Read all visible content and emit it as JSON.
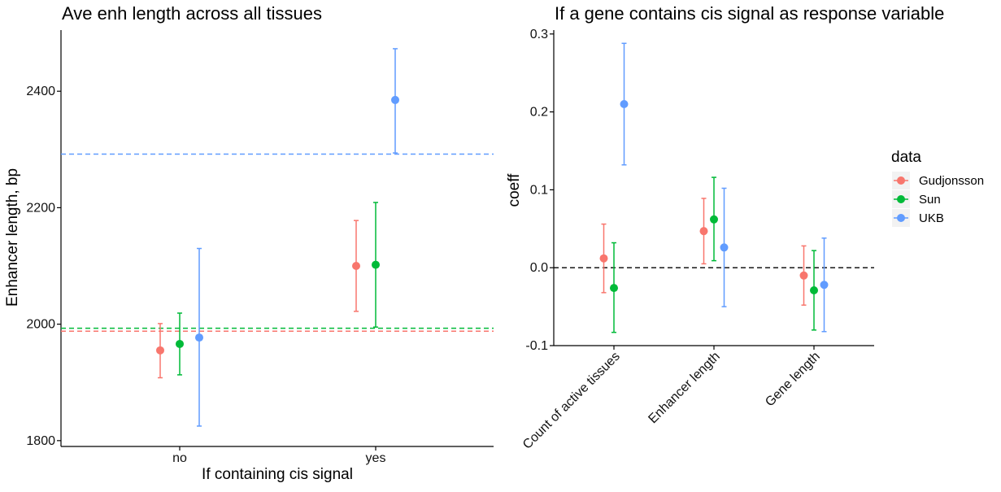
{
  "chart_data": [
    {
      "type": "scatter",
      "title": "Ave enh length across all tissues",
      "xlabel": "If containing cis signal",
      "ylabel": "Enhancer length, bp",
      "categories": [
        "no",
        "yes"
      ],
      "ylim": [
        1790,
        2505
      ],
      "yticks": [
        1800,
        2000,
        2200,
        2400
      ],
      "grid": false,
      "series": [
        {
          "name": "Gudjonsson",
          "color": "#F8766D",
          "values": [
            1955,
            2100
          ],
          "lower": [
            1908,
            2022
          ],
          "upper": [
            2001,
            2178
          ],
          "hline": 1988
        },
        {
          "name": "Sun",
          "color": "#00BA38",
          "values": [
            1966,
            2102
          ],
          "lower": [
            1913,
            1995
          ],
          "upper": [
            2019,
            2209
          ],
          "hline": 1993
        },
        {
          "name": "UKB",
          "color": "#619CFF",
          "values": [
            1977,
            2385
          ],
          "lower": [
            1825,
            2294
          ],
          "upper": [
            2130,
            2473
          ],
          "hline": 2292
        }
      ]
    },
    {
      "type": "scatter",
      "title": "If a gene contains cis signal as response variable",
      "xlabel": "",
      "ylabel": "coeff",
      "categories": [
        "Count of active tissues",
        "Enhancer length",
        "Gene length"
      ],
      "ylim": [
        -0.1,
        0.305
      ],
      "yticks": [
        -0.1,
        0.0,
        0.1,
        0.2,
        0.3
      ],
      "ytick_labels": [
        "-0.1",
        "0.0",
        "0.1",
        "0.2",
        "0.3"
      ],
      "reference_line": 0,
      "grid": false,
      "series": [
        {
          "name": "Gudjonsson",
          "color": "#F8766D",
          "values": [
            0.012,
            0.047,
            -0.01
          ],
          "lower": [
            -0.032,
            0.005,
            -0.048
          ],
          "upper": [
            0.056,
            0.089,
            0.028
          ]
        },
        {
          "name": "Sun",
          "color": "#00BA38",
          "values": [
            -0.026,
            0.062,
            -0.029
          ],
          "lower": [
            -0.083,
            0.009,
            -0.08
          ],
          "upper": [
            0.032,
            0.116,
            0.022
          ]
        },
        {
          "name": "UKB",
          "color": "#619CFF",
          "values": [
            0.21,
            0.026,
            -0.022
          ],
          "lower": [
            0.132,
            -0.05,
            -0.082
          ],
          "upper": [
            0.288,
            0.102,
            0.038
          ]
        }
      ]
    }
  ],
  "legend": {
    "title": "data",
    "placement": "right",
    "items": [
      {
        "label": "Gudjonsson",
        "color": "#F8766D"
      },
      {
        "label": "Sun",
        "color": "#00BA38"
      },
      {
        "label": "UKB",
        "color": "#619CFF"
      }
    ]
  }
}
